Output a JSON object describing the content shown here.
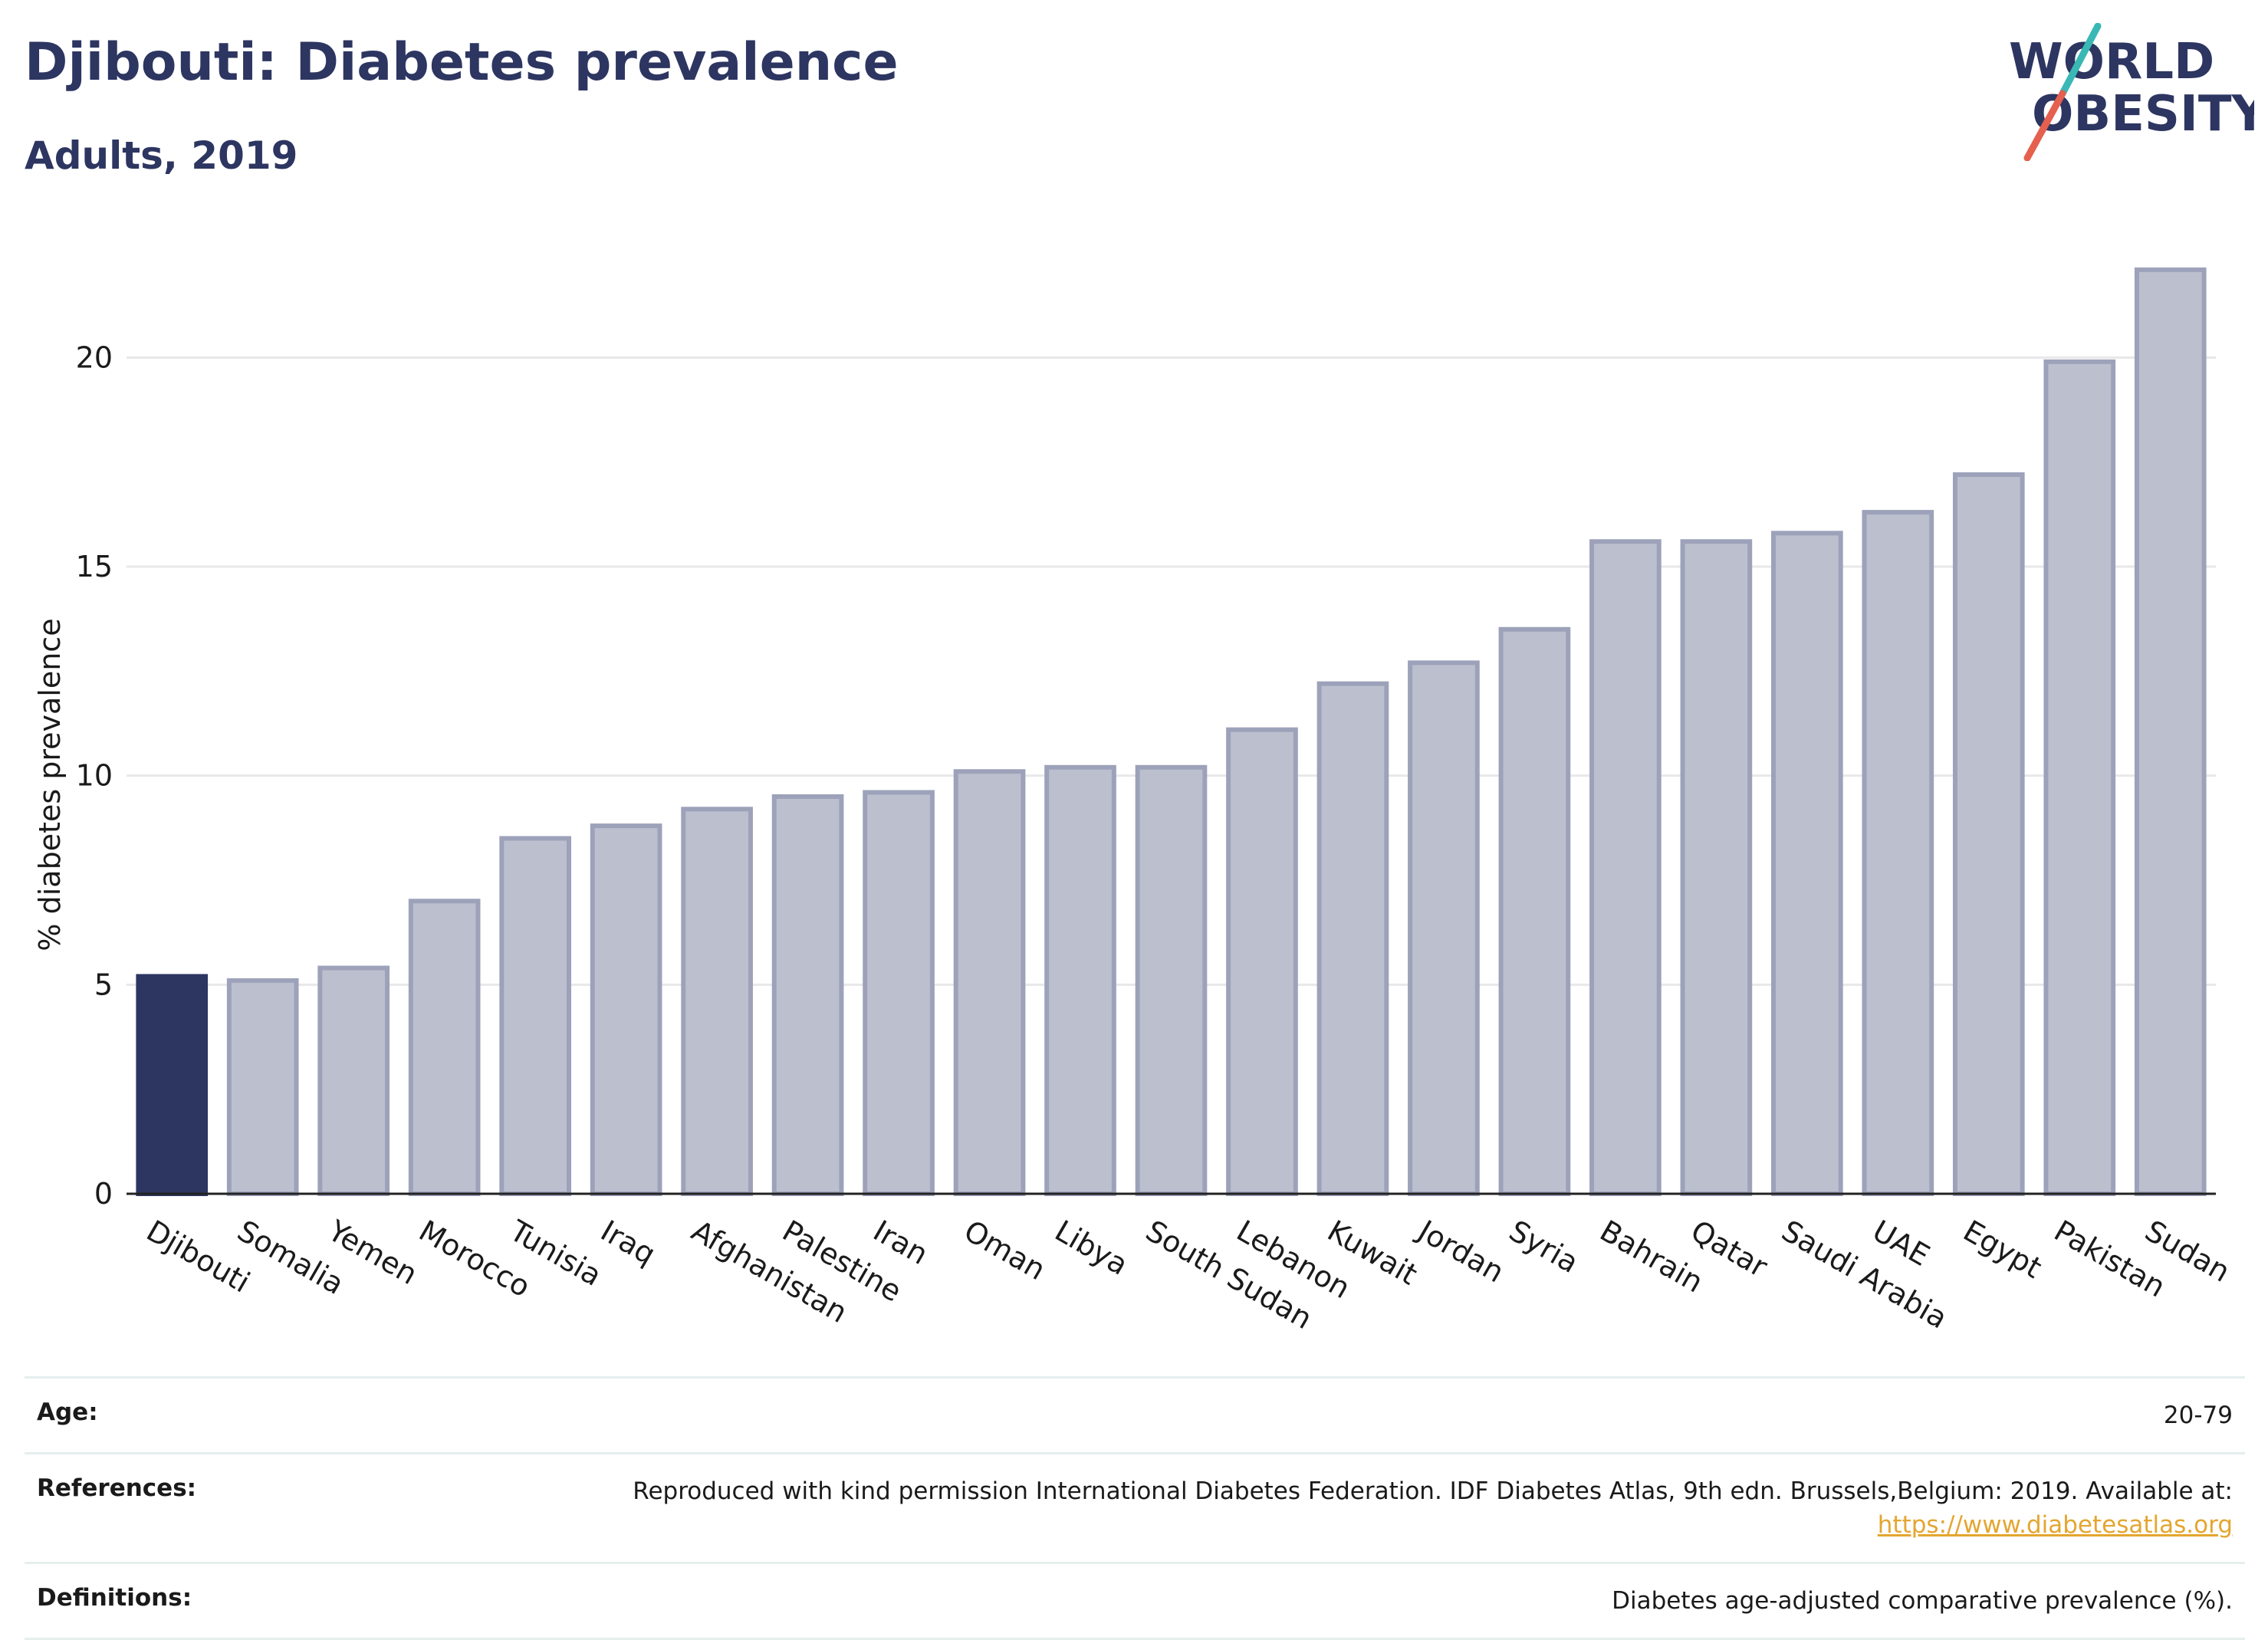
{
  "header": {
    "title": "Djibouti: Diabetes prevalence",
    "subtitle": "Adults, 2019"
  },
  "logo": {
    "line1": "WORLD",
    "line2": "OBESITY",
    "text_color": "#2d3561",
    "slash_top_color": "#3ab8b5",
    "slash_bottom_color": "#e5604e"
  },
  "chart_data": {
    "type": "bar",
    "ylabel": "% diabetes prevalence",
    "xlabel": "",
    "ylim": [
      0,
      22.5
    ],
    "yticks": [
      0,
      5,
      10,
      15,
      20
    ],
    "grid": true,
    "highlight_color": "#2d3561",
    "bar_color": "#bcc0ce",
    "bar_edge_color": "#9da2ba",
    "categories": [
      "Djibouti",
      "Somalia",
      "Yemen",
      "Morocco",
      "Tunisia",
      "Iraq",
      "Afghanistan",
      "Palestine",
      "Iran",
      "Oman",
      "Libya",
      "South Sudan",
      "Lebanon",
      "Kuwait",
      "Jordan",
      "Syria",
      "Bahrain",
      "Qatar",
      "Saudi Arabia",
      "UAE",
      "Egypt",
      "Pakistan",
      "Sudan"
    ],
    "values": [
      5.2,
      5.1,
      5.4,
      7.0,
      8.5,
      8.8,
      9.2,
      9.5,
      9.6,
      10.1,
      10.2,
      10.2,
      11.1,
      12.2,
      12.7,
      13.5,
      15.6,
      15.6,
      15.8,
      16.3,
      17.2,
      19.9,
      22.1
    ],
    "highlight": "Djibouti"
  },
  "info": {
    "age_label": "Age:",
    "age_value": "20-79",
    "references_label": "References:",
    "references_text": "Reproduced with kind permission International Diabetes Federation. IDF Diabetes Atlas, 9th edn. Brussels,Belgium: 2019. Available at:",
    "references_link": "https://www.diabetesatlas.org",
    "definitions_label": "Definitions:",
    "definitions_value": "Diabetes age-adjusted comparative prevalence (%)."
  }
}
